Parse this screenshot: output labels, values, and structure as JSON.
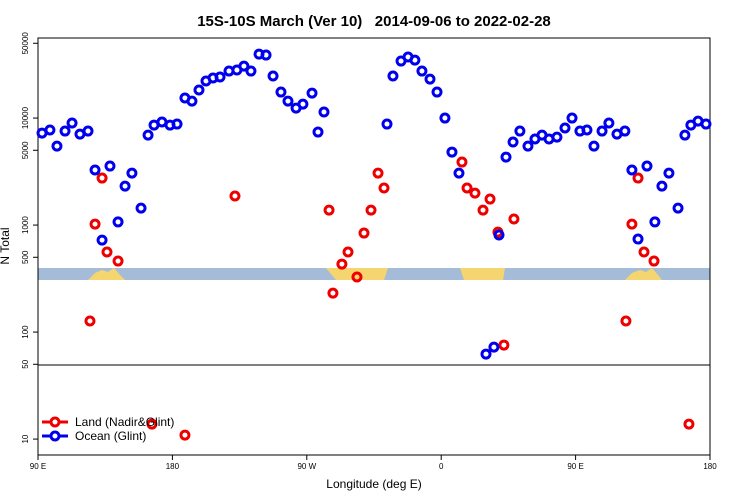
{
  "chart_data": {
    "type": "scatter",
    "title": "15S-10S March (Ver 10)   2014-09-06 to 2022-02-28",
    "x_label": "Longitude (deg E)",
    "y_label": "N Total",
    "y_log": true,
    "xlim": [
      90,
      540
    ],
    "xticks": [
      {
        "value": 90,
        "label": "90 E"
      },
      {
        "value": 180,
        "label": "180"
      },
      {
        "value": 270,
        "label": "90 W"
      },
      {
        "value": 360,
        "label": "0"
      },
      {
        "value": 450,
        "label": "90 E"
      },
      {
        "value": 540,
        "label": "180"
      }
    ],
    "ylim": [
      7.1,
      56000
    ],
    "yticks": [
      10,
      50,
      100,
      500,
      1000,
      5000,
      10000,
      50000
    ],
    "legend": "bottom-left",
    "series": [
      {
        "name": "Land (Nadir&Glint)",
        "color": "#ee0000",
        "x": [
          124.8,
          128.2,
          132.9,
          136.2,
          143.6,
          166.3,
          188.4,
          221.9,
          284.9,
          287.5,
          293.5,
          297.6,
          303.6,
          308.3,
          313,
          317.7,
          321.7,
          373.9,
          377.3,
          382.6,
          388,
          392.7,
          398,
          402,
          408.7,
          483.7,
          487.7,
          491.8,
          495.8,
          502.5,
          525.9
        ],
        "values": [
          127,
          1020,
          2750,
          560,
          461,
          13.8,
          10.9,
          1870,
          1380,
          231,
          432,
          560,
          327,
          842,
          1380,
          3060,
          2220,
          3880,
          2220,
          1990,
          1380,
          1750,
          860,
          75.6,
          1140,
          127,
          1020,
          2750,
          560,
          461,
          13.8
        ]
      },
      {
        "name": "Ocean (Glint)",
        "color": "#0000ee",
        "x": [
          92.7,
          98,
          102.7,
          108.1,
          112.8,
          118.1,
          123.5,
          128.2,
          132.9,
          138.2,
          143.6,
          148.3,
          152.9,
          159,
          163.7,
          167.7,
          173,
          178.4,
          183.1,
          188.4,
          193.1,
          197.8,
          202.5,
          207.2,
          211.9,
          217.9,
          223.2,
          227.9,
          232.6,
          238,
          242.7,
          247.4,
          252.7,
          257.4,
          262.8,
          267.4,
          273.5,
          277.5,
          281.5,
          323.7,
          327.7,
          333.1,
          337.8,
          342.4,
          347.1,
          352.5,
          357.2,
          362.5,
          367.2,
          371.9,
          390,
          395.3,
          398.7,
          403.4,
          408.1,
          412.7,
          418.1,
          422.8,
          427.5,
          432.2,
          437.5,
          442.9,
          447.6,
          452.9,
          457.6,
          462.3,
          467.7,
          472.3,
          477.7,
          483,
          487.7,
          491.8,
          497.8,
          503.1,
          507.8,
          512.5,
          518.6,
          523.2,
          527.2,
          532,
          537.3
        ],
        "values": [
          7240,
          7730,
          5470,
          7560,
          8980,
          7080,
          7560,
          3270,
          724,
          3560,
          1070,
          2310,
          3060,
          1440,
          6930,
          8600,
          9180,
          8600,
          8790,
          15400,
          14400,
          18300,
          22200,
          23700,
          24200,
          27500,
          28100,
          30600,
          27500,
          39600,
          38800,
          24700,
          17500,
          14400,
          12400,
          13500,
          17100,
          7400,
          11400,
          8790,
          24700,
          34100,
          37200,
          34800,
          27500,
          23100,
          17500,
          10000,
          4810,
          3060,
          62.3,
          72.4,
          807,
          4320,
          5970,
          7560,
          5470,
          6370,
          6930,
          6370,
          6640,
          8070,
          10000,
          7560,
          7730,
          5470,
          7560,
          8980,
          7080,
          7560,
          3270,
          740,
          3560,
          1070,
          2310,
          3060,
          1440,
          6930,
          8600,
          9370,
          8790
        ]
      }
    ]
  }
}
